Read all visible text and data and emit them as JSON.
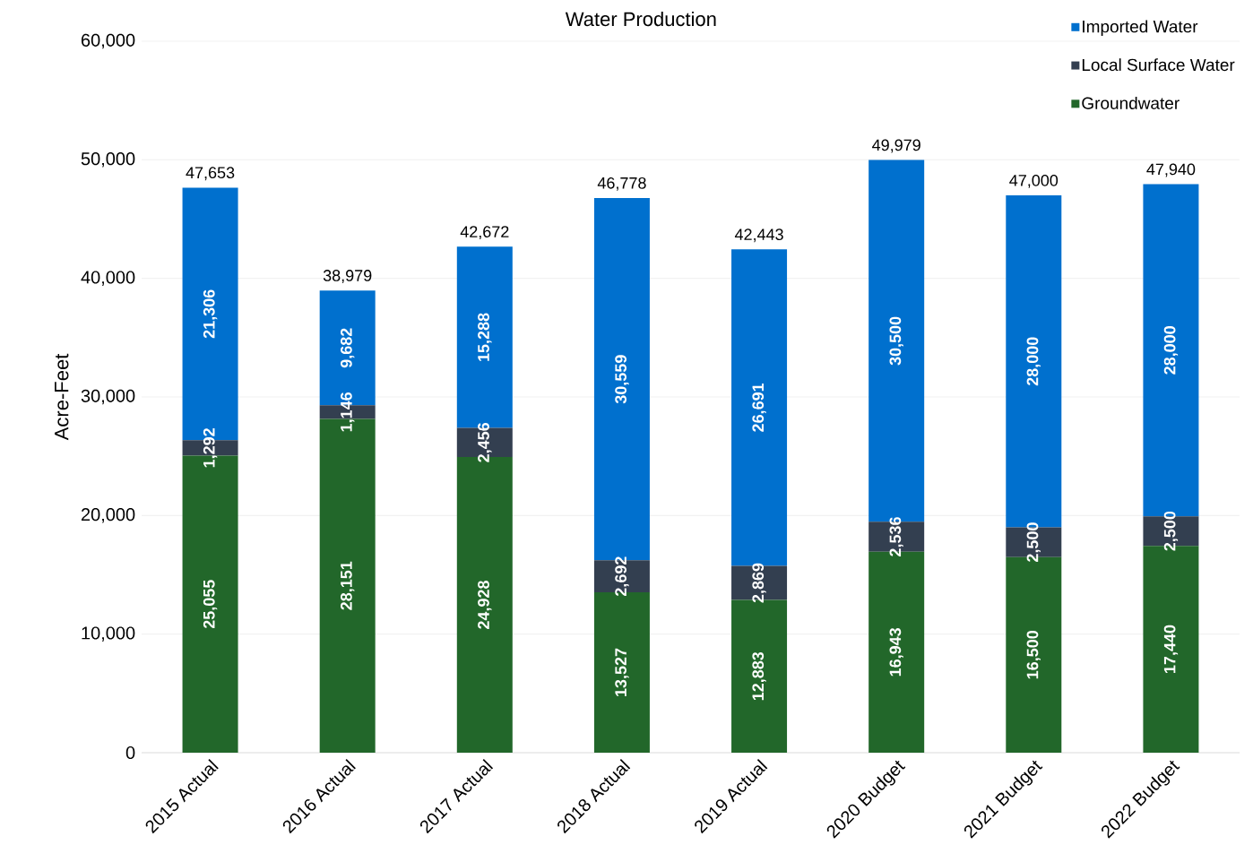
{
  "chart_data": {
    "type": "bar",
    "title": "Water Production",
    "ylabel": "Acre-Feet",
    "categories": [
      "2015 Actual",
      "2016 Actual",
      "2017 Actual",
      "2018 Actual",
      "2019 Actual",
      "2020 Budget",
      "2021 Budget",
      "2022 Budget"
    ],
    "stacked": true,
    "series": [
      {
        "name": "Groundwater",
        "color": "#22672a",
        "values": [
          25055,
          28151,
          24928,
          13527,
          12883,
          16943,
          16500,
          17440
        ],
        "value_labels": [
          "25,055",
          "28,151",
          "24,928",
          "13,527",
          "12,883",
          "16,943",
          "16,500",
          "17,440"
        ]
      },
      {
        "name": "Local Surface Water",
        "color": "#333f50",
        "values": [
          1292,
          1146,
          2456,
          2692,
          2869,
          2536,
          2500,
          2500
        ],
        "value_labels": [
          "1,292",
          "1,146",
          "2,456",
          "2,692",
          "2,869",
          "2,536",
          "2,500",
          "2,500"
        ]
      },
      {
        "name": "Imported Water",
        "color": "#0070ce",
        "values": [
          21306,
          9682,
          15288,
          30559,
          26691,
          30500,
          28000,
          28000
        ],
        "value_labels": [
          "21,306",
          "9,682",
          "15,288",
          "30,559",
          "26,691",
          "30,500",
          "28,000",
          "28,000"
        ]
      }
    ],
    "totals": [
      "47,653",
      "38,979",
      "42,672",
      "46,778",
      "42,443",
      "49,979",
      "47,000",
      "47,940"
    ],
    "ylim": [
      0,
      60000
    ],
    "yticks": [
      0,
      {
        "value": 10000,
        "label": "10,000"
      },
      {
        "value": 20000,
        "label": "20,000"
      },
      {
        "value": 30000,
        "label": "30,000"
      },
      {
        "value": 40000,
        "label": "40,000"
      },
      {
        "value": 50000,
        "label": "50,000"
      },
      {
        "value": 60000,
        "label": "60,000"
      }
    ],
    "grid": "y",
    "legend": "top right"
  }
}
